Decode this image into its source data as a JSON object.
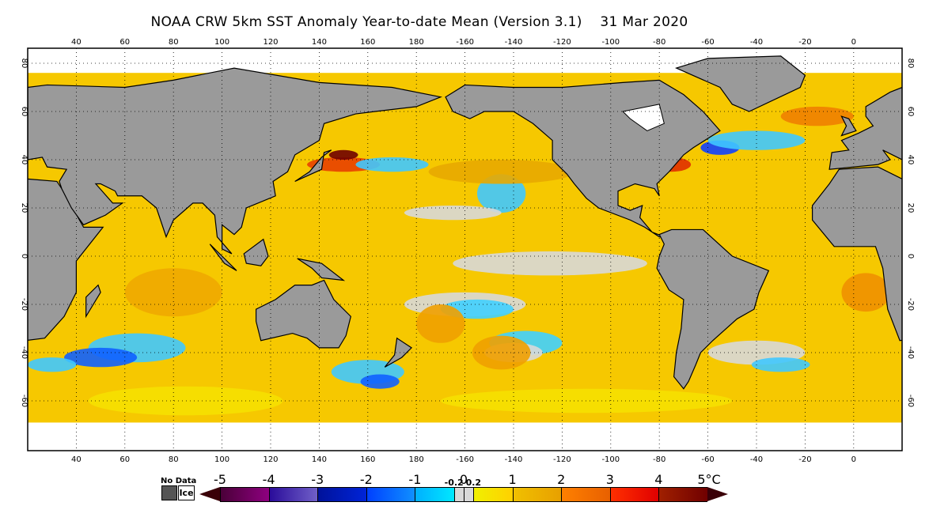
{
  "title": "NOAA CRW 5km SST Anomaly Year-to-date Mean (Version 3.1)    31 Mar 2020",
  "map": {
    "lon_labels": [
      "40",
      "60",
      "80",
      "100",
      "120",
      "140",
      "160",
      "180",
      "-160",
      "-140",
      "-120",
      "-100",
      "-80",
      "-60",
      "-40",
      "-20",
      "0"
    ],
    "lon_values": [
      40,
      60,
      80,
      100,
      120,
      140,
      160,
      180,
      200,
      220,
      240,
      260,
      280,
      300,
      320,
      340,
      360
    ],
    "lat_labels": [
      "80",
      "60",
      "40",
      "20",
      "0",
      "-20",
      "-40",
      "-60"
    ],
    "lat_values": [
      80,
      60,
      40,
      20,
      0,
      -20,
      -40,
      -60
    ],
    "colors": {
      "land": "#9a9a9a",
      "ocean_base": "#f6c800",
      "ice": "#ffffff",
      "near_zero": "#d8d8d8"
    }
  },
  "colorbar": {
    "nodata_label": "No Data",
    "ice_label": "Ice",
    "labels": [
      "-5",
      "-4",
      "-3",
      "-2",
      "-1",
      "-0.2",
      "0",
      "0.2",
      "1",
      "2",
      "3",
      "4",
      "5°C"
    ],
    "label_values": [
      -5,
      -4,
      -3,
      -2,
      -1,
      -0.2,
      0,
      0.2,
      1,
      2,
      3,
      4,
      5
    ],
    "segments": [
      {
        "from": -5,
        "to": -4,
        "c1": "#4a0038",
        "c2": "#8e0080"
      },
      {
        "from": -4,
        "to": -3,
        "c1": "#2a0c9a",
        "c2": "#7060c8"
      },
      {
        "from": -3,
        "to": -2,
        "c1": "#00129a",
        "c2": "#0024d8"
      },
      {
        "from": -2,
        "to": -1,
        "c1": "#0040ff",
        "c2": "#1090ff"
      },
      {
        "from": -1,
        "to": -0.2,
        "c1": "#00b0ff",
        "c2": "#00e8ff"
      },
      {
        "from": -0.2,
        "to": 0,
        "c1": "#d8d8d8",
        "c2": "#d8d8d8"
      },
      {
        "from": 0,
        "to": 0.2,
        "c1": "#d8d8d8",
        "c2": "#d8d8d8"
      },
      {
        "from": 0.2,
        "to": 1,
        "c1": "#f0f000",
        "c2": "#ffd000"
      },
      {
        "from": 1,
        "to": 2,
        "c1": "#f0c000",
        "c2": "#e8a000"
      },
      {
        "from": 2,
        "to": 3,
        "c1": "#ff8000",
        "c2": "#e86000"
      },
      {
        "from": 3,
        "to": 4,
        "c1": "#ff3000",
        "c2": "#e00000"
      },
      {
        "from": 4,
        "to": 5,
        "c1": "#a02000",
        "c2": "#700000"
      }
    ]
  }
}
